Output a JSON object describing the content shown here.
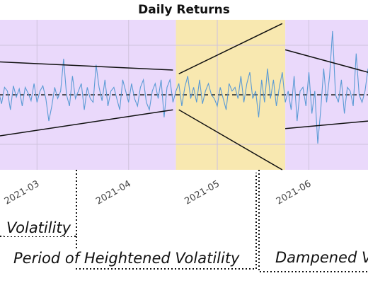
{
  "chart_data": {
    "type": "line",
    "title": "Daily Returns",
    "xlabel": "",
    "ylabel": "",
    "x_tick_labels": [
      "2021-03",
      "2021-04",
      "2021-05",
      "2021-06"
    ],
    "x_range": [
      "2021-02-16",
      "2021-06-21"
    ],
    "y_range": [
      -1.0,
      1.0
    ],
    "mean_value": 0.0,
    "series": [
      {
        "x_start": "2021-02-16",
        "frequency": "daily",
        "values": [
          0.05,
          -0.12,
          0.1,
          0.05,
          -0.2,
          0.12,
          -0.03,
          0.08,
          -0.15,
          0.1,
          0.02,
          -0.08,
          0.15,
          -0.1,
          0.05,
          0.12,
          -0.05,
          -0.35,
          -0.15,
          0.1,
          -0.05,
          0.05,
          0.48,
          0.0,
          -0.15,
          0.25,
          -0.05,
          0.05,
          0.15,
          -0.2,
          0.1,
          -0.05,
          -0.1,
          0.4,
          0.1,
          -0.08,
          0.2,
          -0.15,
          0.05,
          0.1,
          -0.05,
          -0.2,
          0.2,
          0.05,
          -0.1,
          0.15,
          -0.05,
          -0.15,
          0.1,
          0.2,
          -0.1,
          -0.2,
          0.05,
          0.15,
          -0.05,
          0.2,
          -0.3,
          0.1,
          0.2,
          -0.1,
          0.05,
          0.15,
          -0.15,
          0.1,
          0.25,
          -0.05,
          0.1,
          -0.1,
          0.2,
          -0.12,
          0.05,
          0.15,
          0.0,
          -0.05,
          -0.15,
          0.1,
          -0.05,
          -0.2,
          0.15,
          0.05,
          0.1,
          -0.05,
          0.25,
          -0.1,
          0.15,
          0.3,
          -0.05,
          0.05,
          -0.3,
          0.2,
          -0.1,
          0.35,
          -0.05,
          0.2,
          -0.15,
          0.1,
          0.3,
          -0.1,
          0.05,
          -0.2,
          0.25,
          -0.35,
          0.05,
          0.1,
          -0.15,
          0.3,
          -0.25,
          0.05,
          -0.65,
          -0.2,
          0.35,
          -0.1,
          0.25,
          0.85,
          0.0,
          -0.1,
          0.2,
          -0.25,
          0.1,
          0.05,
          -0.15,
          0.55,
          0.0,
          -0.1,
          0.05,
          0.35,
          -0.2,
          0.1,
          0.0
        ]
      }
    ],
    "regimes": [
      {
        "from": "2021-02-16",
        "to": "2021-04-17",
        "shade": "#ead9fb"
      },
      {
        "from": "2021-04-17",
        "to": "2021-05-24",
        "shade": "#f8e8b0"
      },
      {
        "from": "2021-05-24",
        "to": "2021-06-21",
        "shade": "#ead9fb"
      }
    ],
    "trend_lines": [
      {
        "x0": "2021-02-16",
        "y0": 0.44,
        "x1": "2021-04-16",
        "y1": 0.33
      },
      {
        "x0": "2021-02-16",
        "y0": -0.55,
        "x1": "2021-04-16",
        "y1": -0.2
      },
      {
        "x0": "2021-04-18",
        "y0": 0.28,
        "x1": "2021-05-23",
        "y1": 0.95
      },
      {
        "x0": "2021-04-18",
        "y0": -0.2,
        "x1": "2021-05-23",
        "y1": -1.0
      },
      {
        "x0": "2021-05-24",
        "y0": 0.6,
        "x1": "2021-06-21",
        "y1": 0.3
      },
      {
        "x0": "2021-05-24",
        "y0": -0.45,
        "x1": "2021-06-21",
        "y1": -0.35
      }
    ],
    "colors": {
      "line": "#5b9bd5",
      "trend": "#111111",
      "grid": "#cfc3dd",
      "mean": "#222222"
    }
  },
  "annotations": [
    {
      "text": "Volatility"
    },
    {
      "text": "Period of Heightened Volatility"
    },
    {
      "text": "Dampened V"
    }
  ]
}
